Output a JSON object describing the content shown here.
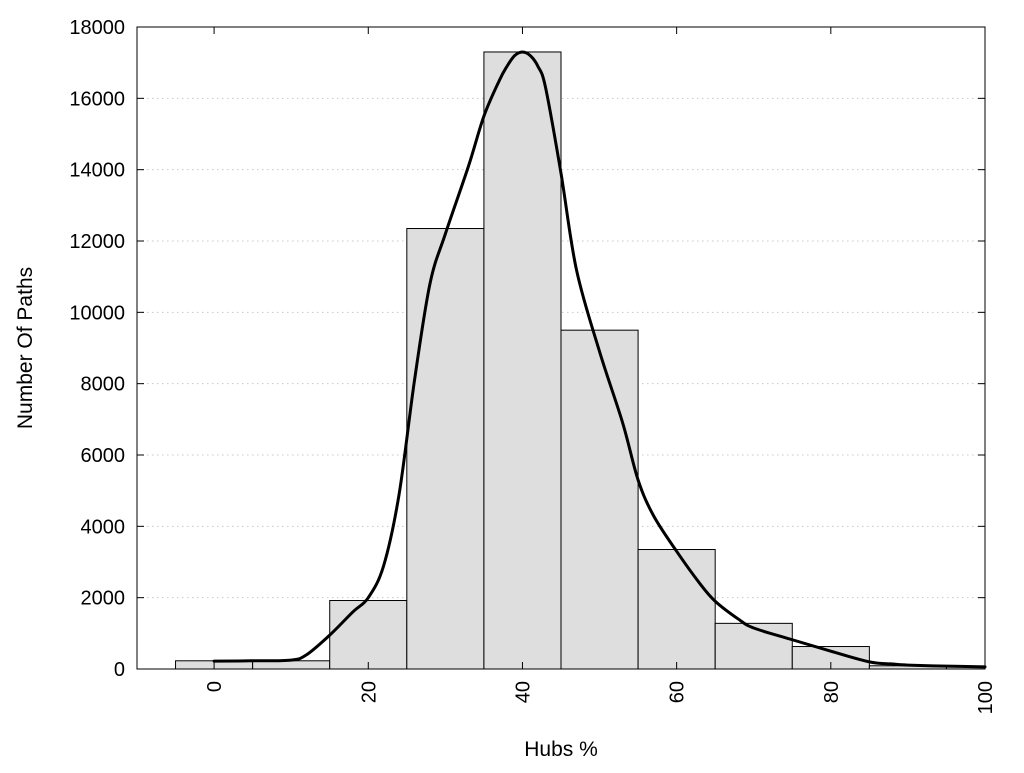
{
  "chart_data": {
    "type": "bar",
    "title": "",
    "xlabel": "Hubs %",
    "ylabel": "Number Of Paths",
    "xlim": [
      -10,
      100
    ],
    "ylim": [
      0,
      18000
    ],
    "grid": {
      "y": true,
      "x": false,
      "style": "dotted"
    },
    "x_ticks": [
      {
        "value": 0,
        "label": "0"
      },
      {
        "value": 20,
        "label": "20"
      },
      {
        "value": 40,
        "label": "40"
      },
      {
        "value": 60,
        "label": "60"
      },
      {
        "value": 80,
        "label": "80"
      },
      {
        "value": 100,
        "label": "100"
      }
    ],
    "y_ticks": [
      {
        "value": 0,
        "label": "0"
      },
      {
        "value": 2000,
        "label": "2000"
      },
      {
        "value": 4000,
        "label": "4000"
      },
      {
        "value": 6000,
        "label": "6000"
      },
      {
        "value": 8000,
        "label": "8000"
      },
      {
        "value": 10000,
        "label": "10000"
      },
      {
        "value": 12000,
        "label": "12000"
      },
      {
        "value": 14000,
        "label": "14000"
      },
      {
        "value": 16000,
        "label": "16000"
      },
      {
        "value": 18000,
        "label": "18000"
      }
    ],
    "bars": [
      {
        "x0": -5,
        "x1": 5,
        "value": 230
      },
      {
        "x0": 5,
        "x1": 15,
        "value": 230
      },
      {
        "x0": 15,
        "x1": 25,
        "value": 1920
      },
      {
        "x0": 25,
        "x1": 35,
        "value": 12350
      },
      {
        "x0": 35,
        "x1": 45,
        "value": 17300
      },
      {
        "x0": 45,
        "x1": 55,
        "value": 9500
      },
      {
        "x0": 55,
        "x1": 65,
        "value": 3350
      },
      {
        "x0": 65,
        "x1": 75,
        "value": 1280
      },
      {
        "x0": 75,
        "x1": 85,
        "value": 630
      },
      {
        "x0": 85,
        "x1": 95,
        "value": 90
      },
      {
        "x0": 95,
        "x1": 100,
        "value": 60
      }
    ],
    "curve": {
      "x": [
        0,
        5,
        10,
        12,
        15,
        18,
        20,
        22,
        24,
        26,
        28,
        30,
        33,
        35,
        37,
        38,
        39,
        40,
        41,
        42,
        43,
        45,
        47,
        50,
        53,
        55,
        57,
        60,
        63,
        65,
        68,
        70,
        75,
        80,
        85,
        88,
        90,
        95,
        100
      ],
      "y": [
        220,
        230,
        250,
        400,
        950,
        1600,
        2000,
        2900,
        4900,
        8100,
        10800,
        12200,
        14100,
        15500,
        16500,
        16900,
        17200,
        17300,
        17200,
        16900,
        16300,
        13900,
        11200,
        8900,
        6900,
        5300,
        4300,
        3300,
        2400,
        1900,
        1400,
        1150,
        820,
        500,
        200,
        140,
        110,
        80,
        60
      ]
    },
    "colors": {
      "bar_fill": "#dedede",
      "bar_edge": "#000000",
      "curve": "#000000",
      "grid": "#c8c8c8"
    }
  }
}
